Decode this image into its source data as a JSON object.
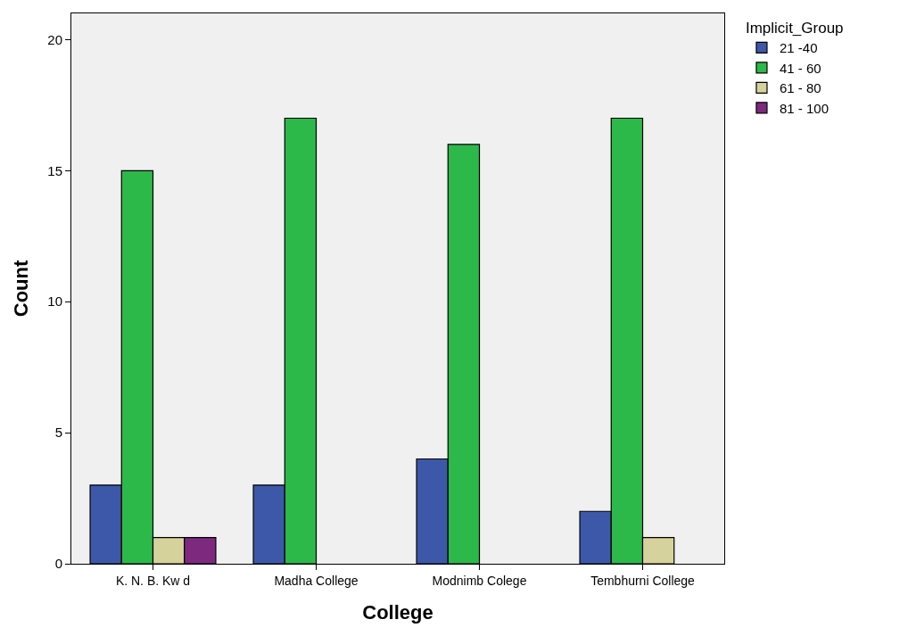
{
  "chart_data": {
    "type": "bar",
    "xlabel": "College",
    "ylabel": "Count",
    "legend_title": "Implicit_Group",
    "categories": [
      "K. N. B. Kw d",
      "Madha College",
      "Modnimb Colege",
      "Tembhurni College"
    ],
    "series": [
      {
        "name": "21 -40",
        "color": "#3d58a8",
        "values": [
          3,
          3,
          4,
          2
        ]
      },
      {
        "name": "41 - 60",
        "color": "#2db84a",
        "values": [
          15,
          17,
          16,
          17
        ]
      },
      {
        "name": "61 - 80",
        "color": "#d6d29b",
        "values": [
          1,
          null,
          null,
          1
        ]
      },
      {
        "name": "81 - 100",
        "color": "#7d2a7e",
        "values": [
          1,
          null,
          null,
          null
        ]
      }
    ],
    "ylim": [
      0,
      21
    ],
    "yticks": [
      0,
      5,
      10,
      15,
      20
    ],
    "grid": false,
    "legend": "top right"
  }
}
